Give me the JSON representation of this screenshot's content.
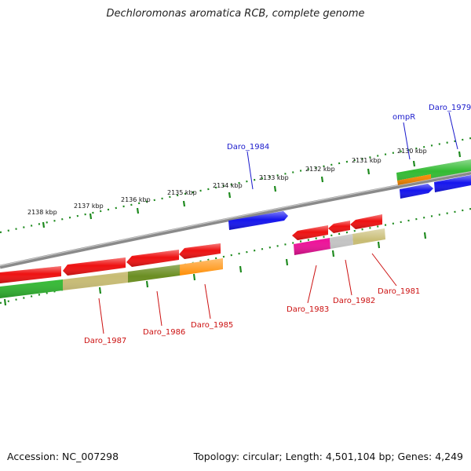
{
  "title": "Dechloromonas aromatica RCB, complete genome",
  "footer": {
    "accession": "Accession: NC_007298",
    "summary": "Topology: circular; Length: 4,501,104 bp; Genes: 4,249"
  },
  "colors": {
    "ruler": "#1e8a1e",
    "backbone": "#888888",
    "forward_label": "#1a1acc",
    "reverse_label": "#cc1111"
  },
  "ticks": [
    {
      "label": "2138 kbp"
    },
    {
      "label": "2137 kbp"
    },
    {
      "label": "2136 kbp"
    },
    {
      "label": "2135 kbp"
    },
    {
      "label": "2134 kbp"
    },
    {
      "label": "2133 kbp"
    },
    {
      "label": "2132 kbp"
    },
    {
      "label": "2131 kbp"
    },
    {
      "label": "2130 kbp"
    }
  ],
  "genes": [
    {
      "name": "Daro_1979",
      "strand": "+",
      "color": "#1a1acc"
    },
    {
      "name": "ompR",
      "strand": "+",
      "color": "#1a1acc"
    },
    {
      "name": "Daro_1981",
      "strand": "-",
      "color": "#cc1111"
    },
    {
      "name": "Daro_1982",
      "strand": "-",
      "color": "#cc1111"
    },
    {
      "name": "Daro_1983",
      "strand": "-",
      "color": "#cc1111"
    },
    {
      "name": "Daro_1984",
      "strand": "+",
      "color": "#1a1acc"
    },
    {
      "name": "Daro_1985",
      "strand": "-",
      "color": "#cc1111"
    },
    {
      "name": "Daro_1986",
      "strand": "-",
      "color": "#cc1111"
    },
    {
      "name": "Daro_1987",
      "strand": "-",
      "color": "#cc1111"
    }
  ]
}
